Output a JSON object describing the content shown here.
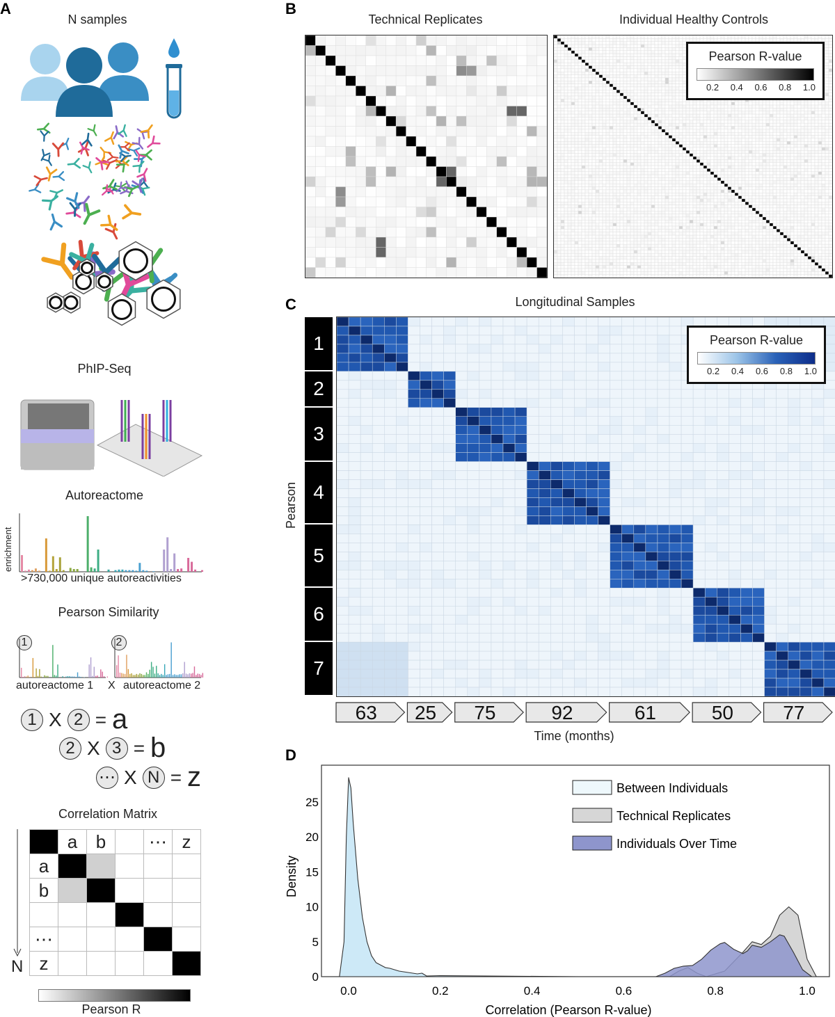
{
  "panels": {
    "a": "A",
    "b": "B",
    "c": "C",
    "d": "D"
  },
  "panel_a": {
    "n_samples": "N samples",
    "phipseq": "PhIP-Seq",
    "autoreactome": "Autoreactome",
    "enrichment_axis": "enrichment",
    "unique_label": ">730,000 unique autoreactivities",
    "pearson_similarity": "Pearson Similarity",
    "autoreactome_1": "autoreactome 1",
    "autoreactome_2": "autoreactome 2",
    "times": "X",
    "circle_1": "1",
    "circle_2": "2",
    "equations": [
      {
        "left": "1",
        "op": "X",
        "right": "2",
        "eq": "=",
        "result": "a"
      },
      {
        "left": "2",
        "op": "X",
        "right": "3",
        "eq": "=",
        "result": "b"
      },
      {
        "left": "⋯",
        "op": "X",
        "right": "N",
        "eq": "=",
        "result": "z"
      }
    ],
    "correlation_matrix": "Correlation Matrix",
    "matrix_headers": [
      "a",
      "b",
      "",
      "⋯",
      "z"
    ],
    "n_axis": "N",
    "pearson_r": "Pearson R",
    "bars_main": [
      30,
      2,
      4,
      3,
      6,
      2,
      0,
      60,
      2,
      28,
      5,
      26,
      3,
      0,
      7,
      5,
      5,
      0,
      0,
      100,
      8,
      6,
      40,
      0,
      0,
      4,
      0,
      3,
      4,
      4,
      3,
      3,
      3,
      2,
      16,
      3,
      2,
      0,
      1,
      0,
      0,
      40,
      62,
      5,
      33,
      5,
      6,
      0,
      25,
      18,
      4,
      0,
      3
    ],
    "bar_colors": [
      "#e58aa6",
      "#e58aa6",
      "#e58aa6",
      "#e0a060",
      "#e0a060",
      "#e0a060",
      "#e0a060",
      "#d89a3a",
      "#c9a640",
      "#b5a33a",
      "#b5a33a",
      "#a8a23a",
      "#a8a23a",
      "#a8a23a",
      "#8aa840",
      "#8aa840",
      "#8aa840",
      "#5db563",
      "#5db563",
      "#4caf6a",
      "#4caf6a",
      "#3fae85",
      "#3fae85",
      "#3fae85",
      "#3fae85",
      "#3aa8a0",
      "#3aa8a0",
      "#3aa8b8",
      "#3aa8b8",
      "#3aa8b8",
      "#4aa0d0",
      "#4aa0d0",
      "#4aa0d0",
      "#4aa0d0",
      "#4aa0d0",
      "#4aa0d0",
      "#4aa0d0",
      "#4aa0d0",
      "#4aa0d0",
      "#4aa0d0",
      "#b0a0d0",
      "#b0a0d0",
      "#b0a0d0",
      "#b0a0d0",
      "#b0a0d0",
      "#d86a9a",
      "#d86a9a",
      "#d86a9a",
      "#d86a9a",
      "#d86a9a",
      "#d86a9a",
      "#d86a9a",
      "#d86a9a"
    ]
  },
  "chart_data": [
    {
      "type": "heatmap",
      "panel": "B",
      "title": "Technical Replicates",
      "n": 24,
      "diagonal_value": 1.0,
      "off_diagonal_typical": 0.05,
      "highlights": [
        [
          3,
          15,
          0.45
        ],
        [
          7,
          20,
          0.6
        ],
        [
          12,
          4,
          0.25
        ],
        [
          13,
          8,
          0.3
        ],
        [
          16,
          3,
          0.4
        ],
        [
          19,
          12,
          0.25
        ],
        [
          21,
          7,
          0.6
        ],
        [
          22,
          14,
          0.3
        ],
        [
          13,
          14,
          0.6
        ]
      ],
      "colorbar": {
        "title": "Pearson R-value",
        "ticks": [
          "0.2",
          "0.4",
          "0.6",
          "0.8",
          "1.0"
        ],
        "range": [
          0,
          1
        ],
        "colors": [
          "#ffffff",
          "#000000"
        ]
      }
    },
    {
      "type": "heatmap",
      "panel": "B",
      "title": "Individual Healthy Controls",
      "n": 80,
      "diagonal_value": 1.0,
      "off_diagonal_typical": 0.03
    },
    {
      "type": "heatmap",
      "panel": "C",
      "title": "Longitudinal Samples",
      "ylabel": "Pearson",
      "xlabel": "Time (months)",
      "groups": [
        "1",
        "2",
        "3",
        "4",
        "5",
        "6",
        "7"
      ],
      "group_sizes": [
        6,
        4,
        6,
        7,
        7,
        6,
        6
      ],
      "time_months": [
        "63",
        "25",
        "75",
        "92",
        "61",
        "50",
        "77"
      ],
      "within_group_r": 0.85,
      "between_group_r": 0.08,
      "colorbar": {
        "title": "Pearson R-value",
        "ticks": [
          "0.2",
          "0.4",
          "0.6",
          "0.8",
          "1.0"
        ],
        "range": [
          0,
          1
        ],
        "colors": [
          "#ffffff",
          "#0d2d8a"
        ]
      }
    },
    {
      "type": "area",
      "panel": "D",
      "xlabel": "Correlation (Pearson R-value)",
      "ylabel": "Density",
      "xlim": [
        -0.05,
        1.05
      ],
      "ylim": [
        0,
        30
      ],
      "xticks": [
        "0.0",
        "0.2",
        "0.4",
        "0.6",
        "0.8",
        "1.0"
      ],
      "xtick_values": [
        0,
        0.2,
        0.4,
        0.6,
        0.8,
        1.0
      ],
      "yticks": [
        "0",
        "5",
        "10",
        "15",
        "20",
        "25"
      ],
      "ytick_values": [
        0,
        5,
        10,
        15,
        20,
        25
      ],
      "legend_position": "top-right",
      "series": [
        {
          "name": "Between Individuals",
          "color": "#cde9f7",
          "x": [
            -0.02,
            -0.01,
            -0.005,
            0,
            0.005,
            0.01,
            0.02,
            0.03,
            0.04,
            0.05,
            0.06,
            0.08,
            0.09,
            0.1,
            0.11,
            0.13,
            0.15,
            0.16,
            0.17,
            0.2,
            0.3,
            0.5
          ],
          "y": [
            0,
            5,
            20,
            28.5,
            27,
            22,
            14,
            8.5,
            5,
            3,
            2,
            1.3,
            1.2,
            1.0,
            0.8,
            0.6,
            0.4,
            0.5,
            0.1,
            0.15,
            0.1,
            0
          ]
        },
        {
          "name": "Technical Replicates",
          "color": "#d6d6d6",
          "x": [
            0.7,
            0.72,
            0.74,
            0.76,
            0.78,
            0.82,
            0.86,
            0.88,
            0.9,
            0.92,
            0.94,
            0.96,
            0.98,
            1.0,
            1.02
          ],
          "y": [
            0,
            0.8,
            1.3,
            0.5,
            0,
            0.8,
            3.5,
            5.0,
            4.6,
            5.8,
            8.8,
            10.0,
            8.8,
            2.5,
            0
          ]
        },
        {
          "name": "Individuals Over Time",
          "color": "#8e95cc",
          "x": [
            0.67,
            0.69,
            0.71,
            0.73,
            0.75,
            0.77,
            0.79,
            0.81,
            0.82,
            0.84,
            0.86,
            0.87,
            0.88,
            0.9,
            0.92,
            0.94,
            0.95,
            0.97,
            0.99,
            1.01
          ],
          "y": [
            0,
            0.5,
            1.2,
            1.5,
            1.6,
            2.5,
            3.8,
            4.7,
            4.9,
            3.9,
            3.3,
            3.7,
            4.5,
            4.2,
            5.0,
            6.0,
            5.8,
            3.5,
            1.0,
            0
          ]
        }
      ]
    }
  ]
}
